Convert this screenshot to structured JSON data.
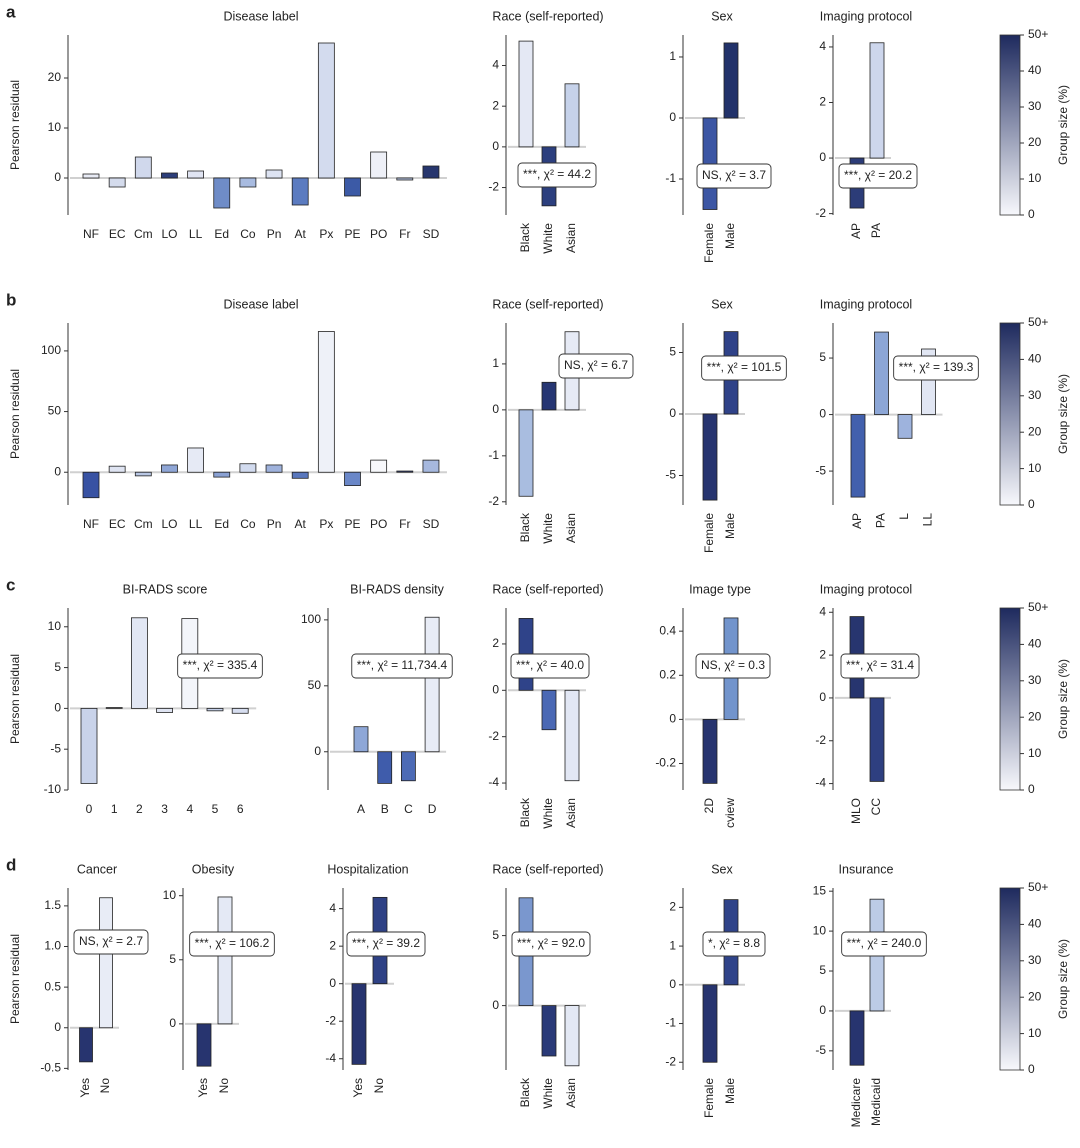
{
  "chart_data": [
    {
      "type": "bar",
      "panel": "a",
      "title": "Disease label",
      "y_label": "Pearson residual",
      "categories": [
        "NF",
        "EC",
        "Cm",
        "LO",
        "LL",
        "Ed",
        "Co",
        "Pn",
        "At",
        "Px",
        "PE",
        "PO",
        "Fr",
        "SD"
      ],
      "values": [
        0.8,
        -1.8,
        4.2,
        1.0,
        1.4,
        -6.0,
        -1.8,
        1.6,
        -5.4,
        27.0,
        -3.6,
        5.2,
        -0.4,
        2.4
      ],
      "colors": [
        "#e8ebf5",
        "#d4dbec",
        "#d0d8ec",
        "#2c3e7a",
        "#e0e4f2",
        "#6f8cc7",
        "#a8bbe0",
        "#dde3f2",
        "#5b7bc0",
        "#d3dbee",
        "#3c5aa6",
        "#eef0f7",
        "#b8c6e4",
        "#27366e"
      ],
      "ylim": [
        -7.4,
        28.6
      ],
      "yticks": [
        0,
        10,
        20
      ]
    },
    {
      "type": "bar",
      "title": "Race (self-reported)",
      "annotation": "***, χ² = 44.2",
      "categories": [
        "Black",
        "White",
        "Asian"
      ],
      "values": [
        5.2,
        -2.9,
        3.1
      ],
      "colors": [
        "#e4e8f4",
        "#2c3f7e",
        "#c6d2ea"
      ],
      "ylim": [
        -3.35,
        5.5
      ],
      "yticks": [
        -2,
        0,
        2,
        4
      ]
    },
    {
      "type": "bar",
      "title": "Sex",
      "annotation": "NS, χ² = 3.7",
      "categories": [
        "Female",
        "Male"
      ],
      "values": [
        -1.5,
        1.23
      ],
      "colors": [
        "#3c56a4",
        "#22326a"
      ],
      "ylim": [
        -1.59,
        1.36
      ],
      "yticks": [
        -1,
        0,
        1
      ]
    },
    {
      "type": "bar",
      "title": "Imaging protocol",
      "annotation": "***, χ² = 20.2",
      "categories": [
        "AP",
        "PA"
      ],
      "values": [
        -1.8,
        4.15
      ],
      "colors": [
        "#2c3c78",
        "#cdd6ec"
      ],
      "ylim": [
        -2.05,
        4.43
      ],
      "yticks": [
        -2,
        0,
        2,
        4
      ]
    },
    {
      "type": "colorbar",
      "title": "Group size (%)",
      "ylim": [
        0,
        50
      ],
      "yticks": [
        0,
        10,
        20,
        30,
        40,
        {
          "value": 50,
          "label": "50+"
        }
      ],
      "colors": [
        "#f7f8fc",
        "#1e2a5e"
      ]
    },
    {
      "type": "bar",
      "panel": "b",
      "title": "Disease label",
      "y_label": "Pearson residual",
      "categories": [
        "NF",
        "EC",
        "Cm",
        "LO",
        "LL",
        "Ed",
        "Co",
        "Pn",
        "At",
        "Px",
        "PE",
        "PO",
        "Fr",
        "SD"
      ],
      "values": [
        -21,
        5,
        -3,
        6,
        20,
        -4,
        7,
        6,
        -5,
        116,
        -11,
        10,
        1,
        10
      ],
      "colors": [
        "#3852a3",
        "#dfe4f2",
        "#b9c7e4",
        "#8fa6d6",
        "#e6eaf5",
        "#8aa1d3",
        "#d2dbef",
        "#9fb2dc",
        "#5977bd",
        "#eef1f8",
        "#6a87c8",
        "#f7f8fb",
        "#303f7a",
        "#a6b8de"
      ],
      "ylim": [
        -27,
        123
      ],
      "yticks": [
        0,
        50,
        100
      ]
    },
    {
      "type": "bar",
      "title": "Race (self-reported)",
      "annotation": "NS, χ² = 6.7",
      "categories": [
        "Black",
        "White",
        "Asian"
      ],
      "values": [
        -1.88,
        0.6,
        1.7
      ],
      "colors": [
        "#a9bde0",
        "#263673",
        "#e6eaf5"
      ],
      "ylim": [
        -2.07,
        1.89
      ],
      "yticks": [
        -2,
        -1,
        0,
        1
      ]
    },
    {
      "type": "bar",
      "title": "Sex",
      "annotation": "***, χ² = 101.5",
      "categories": [
        "Female",
        "Male"
      ],
      "values": [
        -7,
        6.7
      ],
      "colors": [
        "#26346f",
        "#2f4288"
      ],
      "ylim": [
        -7.4,
        7.4
      ],
      "yticks": [
        -5,
        0,
        5
      ]
    },
    {
      "type": "bar",
      "title": "Imaging protocol",
      "annotation": "***, χ² = 139.3",
      "categories": [
        "AP",
        "PA",
        "L",
        "LL"
      ],
      "values": [
        -7.3,
        7.3,
        -2.1,
        5.8
      ],
      "colors": [
        "#4260ad",
        "#8ca6d6",
        "#9eb3dd",
        "#e1e6f3"
      ],
      "ylim": [
        -8,
        8.1
      ],
      "yticks": [
        -5,
        0,
        5
      ]
    },
    {
      "type": "colorbar",
      "title": "Group size (%)",
      "ylim": [
        0,
        50
      ],
      "yticks": [
        0,
        10,
        20,
        30,
        40,
        {
          "value": 50,
          "label": "50+"
        }
      ],
      "colors": [
        "#f7f8fc",
        "#1e2a5e"
      ]
    },
    {
      "type": "bar",
      "panel": "c",
      "title": "BI-RADS score",
      "y_label": "Pearson residual",
      "annotation": "***, χ² = 335.4",
      "categories": [
        "0",
        "1",
        "2",
        "3",
        "4",
        "5",
        "6"
      ],
      "values": [
        -9.2,
        0.1,
        11.1,
        -0.5,
        11.0,
        -0.3,
        -0.6
      ],
      "colors": [
        "#c9d3ea",
        "#2d3d77",
        "#e2e7f4",
        "#dfe4f2",
        "#f3f5fa",
        "#c5d0ea",
        "#d7def0"
      ],
      "ylim": [
        -10,
        12.3
      ],
      "yticks": [
        -10,
        -5,
        0,
        5,
        10
      ]
    },
    {
      "type": "bar",
      "title": "BI-RADS density",
      "annotation": "***, χ² = 11,734.4",
      "categories": [
        "A",
        "B",
        "C",
        "D"
      ],
      "values": [
        19,
        -24,
        -22,
        102
      ],
      "colors": [
        "#8ea7d7",
        "#3f5cab",
        "#4c6ab5",
        "#e8ecf6"
      ],
      "ylim": [
        -29,
        109
      ],
      "yticks": [
        0,
        50,
        100
      ]
    },
    {
      "type": "bar",
      "title": "Race (self-reported)",
      "annotation": "***, χ² = 40.0",
      "categories": [
        "Black",
        "White",
        "Asian"
      ],
      "values": [
        3.1,
        -1.7,
        -3.9
      ],
      "colors": [
        "#2f4389",
        "#4a68b4",
        "#e2e7f4"
      ],
      "ylim": [
        -4.3,
        3.55
      ],
      "yticks": [
        -4,
        -2,
        0,
        2
      ]
    },
    {
      "type": "bar",
      "title": "Image type",
      "annotation": "NS, χ² = 0.3",
      "categories": [
        "2D",
        "cview"
      ],
      "values": [
        -0.29,
        0.46
      ],
      "colors": [
        "#27346f",
        "#7294cc"
      ],
      "ylim": [
        -0.32,
        0.505
      ],
      "yticks": [
        -0.2,
        0,
        0.2,
        0.4
      ]
    },
    {
      "type": "bar",
      "title": "Imaging protocol",
      "annotation": "***, χ² = 31.4",
      "categories": [
        "MLO",
        "CC"
      ],
      "values": [
        3.8,
        -3.9
      ],
      "colors": [
        "#27356f",
        "#2e3f80"
      ],
      "ylim": [
        -4.3,
        4.2
      ],
      "yticks": [
        -4,
        -2,
        0,
        2,
        4
      ]
    },
    {
      "type": "colorbar",
      "title": "Group size (%)",
      "ylim": [
        0,
        50
      ],
      "yticks": [
        0,
        10,
        20,
        30,
        40,
        {
          "value": 50,
          "label": "50+"
        }
      ],
      "colors": [
        "#f7f8fc",
        "#1e2a5e"
      ]
    },
    {
      "type": "bar",
      "panel": "d",
      "title": "Cancer",
      "y_label": "Pearson residual",
      "annotation": "NS, χ² = 2.7",
      "categories": [
        "Yes",
        "No"
      ],
      "values": [
        -0.42,
        1.6
      ],
      "colors": [
        "#27346f",
        "#e8ecf6"
      ],
      "ylim": [
        -0.52,
        1.72
      ],
      "yticks": [
        -0.5,
        0,
        0.5,
        {
          "value": 1,
          "label": "1.0"
        },
        1.5
      ]
    },
    {
      "type": "bar",
      "title": "Obesity",
      "annotation": "***, χ² = 106.2",
      "categories": [
        "Yes",
        "No"
      ],
      "values": [
        -3.3,
        9.9
      ],
      "colors": [
        "#27346f",
        "#e4e9f5"
      ],
      "ylim": [
        -3.6,
        10.6
      ],
      "yticks": [
        0,
        5,
        10
      ]
    },
    {
      "type": "bar",
      "title": "Hospitalization",
      "annotation": "***, χ² = 39.2",
      "categories": [
        "Yes",
        "No"
      ],
      "values": [
        -4.3,
        4.6
      ],
      "colors": [
        "#27346f",
        "#2e4185"
      ],
      "ylim": [
        -4.6,
        5.1
      ],
      "yticks": [
        -4,
        -2,
        0,
        2,
        4
      ]
    },
    {
      "type": "bar",
      "title": "Race (self-reported)",
      "annotation": "***, χ² = 92.0",
      "categories": [
        "Black",
        "White",
        "Asian"
      ],
      "values": [
        7.7,
        -3.6,
        -4.3
      ],
      "colors": [
        "#7a97ce",
        "#2a3a78",
        "#e3e8f4"
      ],
      "ylim": [
        -4.6,
        8.4
      ],
      "yticks": [
        0,
        5
      ]
    },
    {
      "type": "bar",
      "title": "Sex",
      "annotation": "*, χ² = 8.8",
      "categories": [
        "Female",
        "Male"
      ],
      "values": [
        -2.0,
        2.2
      ],
      "colors": [
        "#27346f",
        "#2f4389"
      ],
      "ylim": [
        -2.2,
        2.5
      ],
      "yticks": [
        -2,
        -1,
        0,
        1,
        2
      ]
    },
    {
      "type": "bar",
      "title": "Insurance",
      "annotation": "***, χ² = 240.0",
      "categories": [
        "Medicare",
        "Medicaid"
      ],
      "values": [
        -6.8,
        14
      ],
      "colors": [
        "#27346f",
        "#bccbe6"
      ],
      "ylim": [
        -7.4,
        15.4
      ],
      "yticks": [
        -5,
        0,
        5,
        10,
        15
      ]
    },
    {
      "type": "colorbar",
      "title": "Group size (%)",
      "ylim": [
        0,
        50
      ],
      "yticks": [
        0,
        10,
        20,
        30,
        40,
        {
          "value": 50,
          "label": "50+"
        }
      ],
      "colors": [
        "#f7f8fc",
        "#1e2a5e"
      ]
    }
  ]
}
